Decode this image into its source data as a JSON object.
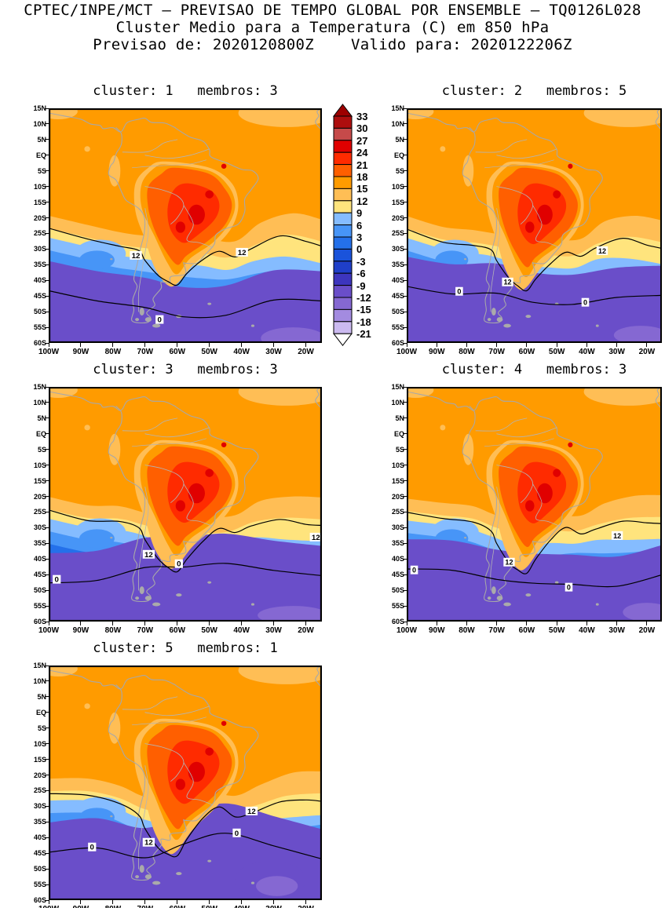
{
  "header": {
    "line1": "CPTEC/INPE/MCT — PREVISAO DE TEMPO GLOBAL POR ENSEMBLE — TQ0126L028",
    "line2": "Cluster Medio para a Temperatura (C) em 850 hPa",
    "line3": "Previsao de: 2020120800Z    Valido para: 2020122206Z"
  },
  "chart_data": {
    "type": "heatmap",
    "title": "Cluster Medio para a Temperatura (C) em 850 hPa",
    "center": "CPTEC/INPE/MCT",
    "forecast_type": "PREVISAO DE TEMPO GLOBAL POR ENSEMBLE",
    "model": "TQ0126L028",
    "init_time": "2020120800Z",
    "valid_time": "2020122206Z",
    "variable": "Temperatura",
    "units": "C",
    "level": "850 hPa",
    "lat_ticks": [
      "15N",
      "10N",
      "5N",
      "EQ",
      "5S",
      "10S",
      "15S",
      "20S",
      "25S",
      "30S",
      "35S",
      "40S",
      "45S",
      "50S",
      "55S",
      "60S"
    ],
    "lon_ticks": [
      "100W",
      "90W",
      "80W",
      "70W",
      "60W",
      "50W",
      "40W",
      "30W",
      "20W"
    ],
    "lat_range": [
      "15N",
      "60S"
    ],
    "lon_range": [
      "100W",
      "15W"
    ],
    "legend": {
      "values": [
        33,
        30,
        27,
        24,
        21,
        18,
        15,
        12,
        9,
        6,
        3,
        0,
        -3,
        -6,
        -9,
        -12,
        -15,
        -18,
        -21
      ],
      "colors": [
        "#9d0000",
        "#ad0e0e",
        "#c64a4a",
        "#e00000",
        "#ff2b00",
        "#ff5f00",
        "#ff9b00",
        "#ffbe55",
        "#ffe47d",
        "#85bcff",
        "#4795f7",
        "#2470ea",
        "#1a53db",
        "#1f3fc9",
        "#3d35be",
        "#6a4ec9",
        "#8568d2",
        "#a38be0",
        "#cbbaf0",
        "#ffffff"
      ]
    },
    "contour_interval": 3,
    "panels": [
      {
        "cluster": "1",
        "membros": "3",
        "title": "cluster: 1   membros: 3",
        "contour_labels": [
          {
            "value": "12",
            "lon": -73,
            "lat": -32
          },
          {
            "value": "12",
            "lon": -40,
            "lat": -31
          },
          {
            "value": "0",
            "lon": -65,
            "lat": -52.5
          }
        ]
      },
      {
        "cluster": "2",
        "membros": "5",
        "title": "cluster: 2   membros: 5",
        "contour_labels": [
          {
            "value": "12",
            "lon": -66.5,
            "lat": -40.5
          },
          {
            "value": "12",
            "lon": -35,
            "lat": -30.5
          },
          {
            "value": "0",
            "lon": -82,
            "lat": -43.5
          },
          {
            "value": "0",
            "lon": -40,
            "lat": -47
          }
        ]
      },
      {
        "cluster": "3",
        "membros": "3",
        "title": "cluster: 3   membros: 3",
        "contour_labels": [
          {
            "value": "12",
            "lon": -69,
            "lat": -38.5
          },
          {
            "value": "12",
            "lon": -17,
            "lat": -33
          },
          {
            "value": "0",
            "lon": -97,
            "lat": -46.5
          },
          {
            "value": "0",
            "lon": -59,
            "lat": -41.5
          }
        ]
      },
      {
        "cluster": "4",
        "membros": "3",
        "title": "cluster: 4   membros: 3",
        "contour_labels": [
          {
            "value": "12",
            "lon": -66,
            "lat": -41
          },
          {
            "value": "12",
            "lon": -30,
            "lat": -32.5
          },
          {
            "value": "0",
            "lon": -97,
            "lat": -43.5
          },
          {
            "value": "0",
            "lon": -45.5,
            "lat": -49
          }
        ]
      },
      {
        "cluster": "5",
        "membros": "1",
        "title": "cluster: 5   membros: 1",
        "contour_labels": [
          {
            "value": "12",
            "lon": -69,
            "lat": -41.5
          },
          {
            "value": "12",
            "lon": -37,
            "lat": -31.5
          },
          {
            "value": "0",
            "lon": -86,
            "lat": -43
          },
          {
            "value": "0",
            "lon": -41,
            "lat": -38.5
          }
        ]
      }
    ]
  }
}
